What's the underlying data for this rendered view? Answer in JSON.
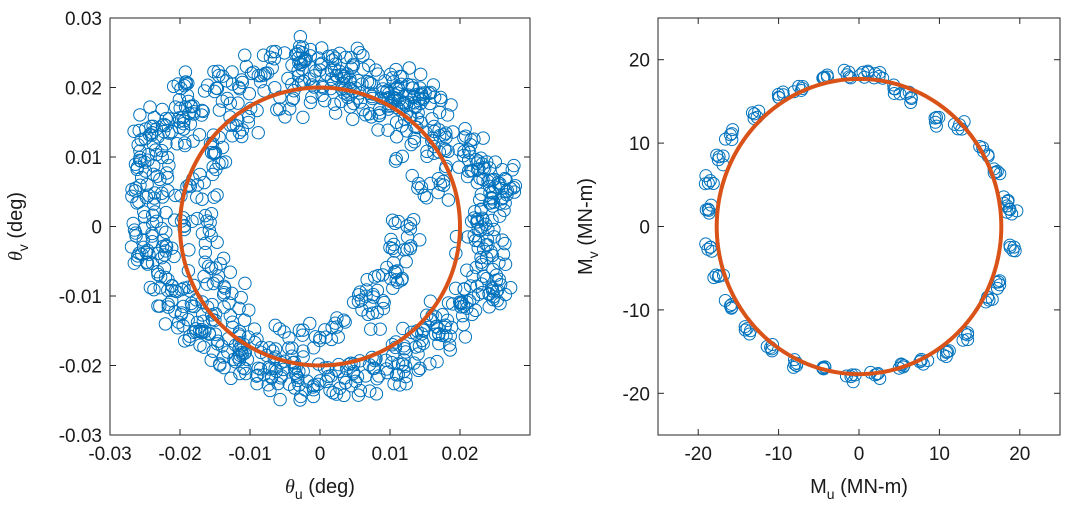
{
  "colors": {
    "scatter": "#0072BD",
    "fit": "#D95319",
    "axes": "#262626"
  },
  "chart_data": [
    {
      "type": "scatter",
      "xlabel": {
        "symbol": "θ",
        "sub": "u",
        "unit": "(deg)"
      },
      "ylabel": {
        "symbol": "θ",
        "sub": "v",
        "unit": "(deg)"
      },
      "xlim": [
        -0.03,
        0.03
      ],
      "ylim": [
        -0.03,
        0.03
      ],
      "xticks": [
        -0.03,
        -0.02,
        -0.01,
        0,
        0.01,
        0.02
      ],
      "xtick_labels": [
        "-0.03",
        "-0.02",
        "-0.01",
        "0",
        "0.01",
        "0.02"
      ],
      "yticks": [
        -0.03,
        -0.02,
        -0.01,
        0,
        0.01,
        0.02,
        0.03
      ],
      "ytick_labels": [
        "-0.03",
        "-0.02",
        "-0.01",
        "0",
        "0.01",
        "0.02",
        "0.03"
      ],
      "grid": false,
      "legend": "none",
      "series": [
        {
          "kind": "scatter",
          "marker": "open-circle",
          "samples": [
            [
              0.0,
              0.0225
            ],
            [
              0.003,
              0.0218
            ],
            [
              0.006,
              0.0205
            ],
            [
              0.009,
              0.0198
            ],
            [
              0.011,
              0.0192
            ],
            [
              0.0135,
              0.0178
            ],
            [
              0.016,
              0.0155
            ],
            [
              0.018,
              0.0128
            ],
            [
              0.0205,
              0.0102
            ],
            [
              0.0225,
              0.0082
            ],
            [
              0.024,
              0.0065
            ],
            [
              0.0255,
              0.006
            ],
            [
              0.0248,
              0.0035
            ],
            [
              0.0232,
              0.0012
            ],
            [
              0.0222,
              -0.002
            ],
            [
              0.0238,
              -0.0045
            ],
            [
              0.0252,
              -0.007
            ],
            [
              0.0232,
              -0.0095
            ],
            [
              0.0205,
              -0.0115
            ],
            [
              0.0182,
              -0.0135
            ],
            [
              0.0165,
              -0.0155
            ],
            [
              0.0142,
              -0.0172
            ],
            [
              0.012,
              -0.0192
            ],
            [
              0.0095,
              -0.0205
            ],
            [
              0.0065,
              -0.0215
            ],
            [
              0.0035,
              -0.0218
            ],
            [
              0.0,
              -0.0222
            ],
            [
              -0.003,
              -0.0228
            ],
            [
              -0.0055,
              -0.0215
            ],
            [
              -0.0085,
              -0.0205
            ],
            [
              -0.0115,
              -0.0192
            ],
            [
              -0.014,
              -0.0172
            ],
            [
              -0.0158,
              -0.0155
            ],
            [
              -0.0175,
              -0.0138
            ],
            [
              -0.0195,
              -0.0115
            ],
            [
              -0.0212,
              -0.0092
            ],
            [
              -0.0232,
              -0.0065
            ],
            [
              -0.0252,
              -0.003
            ],
            [
              -0.024,
              -0.001
            ],
            [
              -0.022,
              0.002
            ],
            [
              -0.0245,
              0.0045
            ],
            [
              -0.0238,
              0.0075
            ],
            [
              -0.0235,
              0.011
            ],
            [
              -0.024,
              0.0135
            ],
            [
              -0.022,
              0.0145
            ],
            [
              -0.0195,
              0.0148
            ],
            [
              -0.0188,
              0.018
            ],
            [
              -0.0165,
              0.0195
            ],
            [
              -0.0125,
              0.0205
            ],
            [
              -0.008,
              0.0218
            ],
            [
              -0.004,
              0.0232
            ],
            [
              -0.0025,
              0.025
            ],
            [
              0.0045,
              0.0228
            ],
            [
              0.0105,
              0.0208
            ],
            [
              0.0145,
              0.0192
            ],
            [
              0.0125,
              -0.0015
            ],
            [
              0.0105,
              -0.0052
            ],
            [
              0.0082,
              -0.0092
            ],
            [
              0.006,
              -0.012
            ],
            [
              0.0,
              -0.016
            ],
            [
              -0.004,
              -0.0175
            ],
            [
              -0.009,
              -0.0162
            ],
            [
              -0.013,
              -0.011
            ],
            [
              -0.0155,
              -0.006
            ],
            [
              -0.0168,
              -0.001
            ],
            [
              -0.0175,
              0.006
            ],
            [
              -0.0152,
              0.0105
            ],
            [
              -0.0102,
              0.0158
            ],
            [
              -0.004,
              0.0182
            ],
            [
              0.003,
              0.018
            ],
            [
              0.0085,
              0.016
            ],
            [
              0.0135,
              0.0122
            ],
            [
              0.0158,
              0.0062
            ]
          ]
        },
        {
          "kind": "line",
          "shape": "circle",
          "center": [
            0,
            0
          ],
          "radius": 0.02
        }
      ]
    },
    {
      "type": "scatter",
      "xlabel": {
        "symbol": "M",
        "sub": "u",
        "unit": "(MN-m)"
      },
      "ylabel": {
        "symbol": "M",
        "sub": "v",
        "unit": "(MN-m)"
      },
      "xlim": [
        -25,
        25
      ],
      "ylim": [
        -25,
        25
      ],
      "xticks": [
        -20,
        -10,
        0,
        10,
        20
      ],
      "xtick_labels": [
        "-20",
        "-10",
        "0",
        "10",
        "20"
      ],
      "yticks": [
        -20,
        -10,
        0,
        10,
        20
      ],
      "ytick_labels": [
        "-20",
        "-10",
        "0",
        "10",
        "20"
      ],
      "grid": false,
      "legend": "none",
      "series": [
        {
          "kind": "scatter",
          "marker": "open-circle",
          "samples": [
            [
              -1.5,
              18.2
            ],
            [
              0.5,
              18.5
            ],
            [
              2.5,
              18.0
            ],
            [
              4.5,
              16.5
            ],
            [
              6.5,
              15.5
            ],
            [
              9.5,
              12.5
            ],
            [
              12.5,
              12.2
            ],
            [
              15.5,
              9.0
            ],
            [
              17.0,
              6.5
            ],
            [
              18.5,
              3.0
            ],
            [
              19.0,
              1.5
            ],
            [
              18.8,
              -2.5
            ],
            [
              17.5,
              -7.0
            ],
            [
              16.0,
              -8.5
            ],
            [
              13.5,
              -13.0
            ],
            [
              11.0,
              -15.0
            ],
            [
              8.0,
              -16.5
            ],
            [
              5.0,
              -17.0
            ],
            [
              2.0,
              -17.8
            ],
            [
              -1.0,
              -18.0
            ],
            [
              -4.5,
              -17.0
            ],
            [
              -8.0,
              -16.5
            ],
            [
              -11.0,
              -14.5
            ],
            [
              -13.5,
              -12.5
            ],
            [
              -16.0,
              -9.5
            ],
            [
              -17.5,
              -6.0
            ],
            [
              -18.5,
              -2.5
            ],
            [
              -19.0,
              2.0
            ],
            [
              -18.5,
              5.5
            ],
            [
              -17.5,
              8.0
            ],
            [
              -16.0,
              11.0
            ],
            [
              -13.0,
              13.5
            ],
            [
              -10.0,
              15.5
            ],
            [
              -7.5,
              16.8
            ],
            [
              -4.5,
              17.8
            ]
          ]
        },
        {
          "kind": "line",
          "shape": "circle",
          "center": [
            0,
            0
          ],
          "radius": 17.7
        }
      ]
    }
  ]
}
